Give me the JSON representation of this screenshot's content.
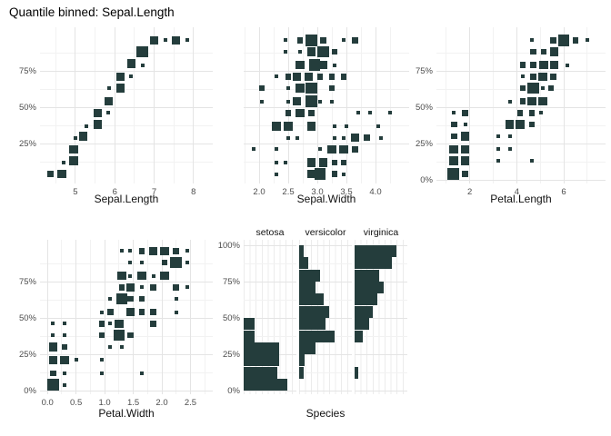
{
  "title": "Quantile binned: Sepal.Length",
  "colors": {
    "tile": "#243d3c",
    "grid_major": "#e4e4e4",
    "grid_minor": "#f2f2f2",
    "tick_text": "#4d4d4d",
    "label_text": "#111111",
    "background": "#ffffff"
  },
  "chart_data": [
    {
      "type": "scatter",
      "id": "p1",
      "xlabel": "Sepal.Length",
      "x_ticks": [
        5,
        6,
        7,
        8
      ],
      "x_tick_labels": [
        "5",
        "6",
        "7",
        "8"
      ],
      "x_minor": [
        4.5,
        5.5,
        6.5,
        7.5
      ],
      "xlim": [
        4.1,
        8.49
      ],
      "y_ticks": [
        25,
        50,
        75
      ],
      "y_tick_labels": [
        "25%",
        "50%",
        "75%"
      ],
      "y_minor": [
        12.5,
        37.5,
        62.5,
        87.5
      ],
      "ylim": [
        -2.5,
        105
      ],
      "note": "square size = count, size class 1-4",
      "points": [
        [
          4.37,
          4,
          2
        ],
        [
          4.65,
          4,
          3
        ],
        [
          4.7,
          12,
          1
        ],
        [
          4.95,
          13,
          3
        ],
        [
          4.95,
          21,
          3
        ],
        [
          5.0,
          29,
          1
        ],
        [
          5.2,
          30,
          3
        ],
        [
          5.27,
          37,
          1
        ],
        [
          5.57,
          38,
          3
        ],
        [
          5.57,
          46,
          3
        ],
        [
          5.84,
          46,
          1
        ],
        [
          5.85,
          54,
          3
        ],
        [
          5.85,
          63,
          1
        ],
        [
          6.15,
          63,
          3
        ],
        [
          6.15,
          71,
          3
        ],
        [
          6.42,
          71,
          1
        ],
        [
          6.42,
          80,
          3
        ],
        [
          6.7,
          79,
          1
        ],
        [
          6.7,
          88,
          4
        ],
        [
          7.0,
          96,
          3
        ],
        [
          7.28,
          96,
          1
        ],
        [
          7.55,
          96,
          3
        ],
        [
          7.84,
          96,
          1
        ]
      ]
    },
    {
      "type": "scatter",
      "id": "p2",
      "xlabel": "Sepal.Width",
      "x_ticks": [
        2.0,
        2.5,
        3.0,
        3.5,
        4.0
      ],
      "x_tick_labels": [
        "2.0",
        "2.5",
        "3.0",
        "3.5",
        "4.0"
      ],
      "x_minor": [
        1.75,
        2.25,
        2.75,
        3.25,
        3.75,
        4.25
      ],
      "xlim": [
        1.734,
        4.578
      ],
      "y_ticks": [
        25,
        50,
        75
      ],
      "y_tick_labels": [],
      "y_minor": [
        12.5,
        37.5,
        62.5,
        87.5
      ],
      "ylim": [
        -2.5,
        105
      ],
      "points": [
        [
          2.45,
          96,
          1
        ],
        [
          2.7,
          96,
          2
        ],
        [
          2.9,
          96,
          4
        ],
        [
          3.1,
          96,
          2
        ],
        [
          3.45,
          96,
          1
        ],
        [
          3.65,
          96,
          2
        ],
        [
          2.45,
          88,
          1
        ],
        [
          2.7,
          88,
          1
        ],
        [
          2.9,
          88,
          3
        ],
        [
          3.1,
          88,
          4
        ],
        [
          3.3,
          88,
          2
        ],
        [
          2.7,
          79,
          3
        ],
        [
          2.95,
          79,
          4
        ],
        [
          3.1,
          79,
          3
        ],
        [
          3.3,
          79,
          1
        ],
        [
          2.3,
          71,
          1
        ],
        [
          2.5,
          71,
          2
        ],
        [
          2.65,
          71,
          3
        ],
        [
          2.85,
          71,
          3
        ],
        [
          3.05,
          71,
          2
        ],
        [
          3.25,
          71,
          2
        ],
        [
          3.45,
          71,
          2
        ],
        [
          2.05,
          63,
          2
        ],
        [
          2.5,
          63,
          1
        ],
        [
          2.7,
          63,
          3
        ],
        [
          2.9,
          63,
          4
        ],
        [
          3.25,
          63,
          2
        ],
        [
          2.05,
          54,
          1
        ],
        [
          2.5,
          54,
          1
        ],
        [
          2.65,
          54,
          3
        ],
        [
          2.9,
          54,
          4
        ],
        [
          3.05,
          54,
          1
        ],
        [
          3.25,
          54,
          1
        ],
        [
          2.5,
          46,
          2
        ],
        [
          2.7,
          46,
          3
        ],
        [
          2.9,
          46,
          2
        ],
        [
          3.7,
          46,
          1
        ],
        [
          3.9,
          46,
          1
        ],
        [
          4.25,
          46,
          1
        ],
        [
          2.3,
          37,
          3
        ],
        [
          2.5,
          37,
          3
        ],
        [
          2.9,
          37,
          3
        ],
        [
          3.3,
          37,
          1
        ],
        [
          3.5,
          37,
          1
        ],
        [
          4.05,
          37,
          1
        ],
        [
          2.5,
          29,
          1
        ],
        [
          2.65,
          29,
          1
        ],
        [
          3.3,
          29,
          1
        ],
        [
          3.45,
          29,
          1
        ],
        [
          3.65,
          29,
          3
        ],
        [
          3.85,
          29,
          2
        ],
        [
          4.1,
          29,
          1
        ],
        [
          1.9,
          21,
          1
        ],
        [
          2.3,
          21,
          1
        ],
        [
          3.05,
          21,
          1
        ],
        [
          3.25,
          21,
          3
        ],
        [
          3.45,
          21,
          3
        ],
        [
          3.65,
          21,
          2
        ],
        [
          2.3,
          12,
          1
        ],
        [
          2.45,
          12,
          1
        ],
        [
          2.9,
          12,
          3
        ],
        [
          3.1,
          12,
          3
        ],
        [
          3.3,
          12,
          2
        ],
        [
          3.45,
          12,
          2
        ],
        [
          2.3,
          4,
          1
        ],
        [
          2.9,
          4,
          3
        ],
        [
          3.05,
          4,
          4
        ],
        [
          3.3,
          4,
          2
        ],
        [
          3.45,
          4,
          1
        ]
      ]
    },
    {
      "type": "scatter",
      "id": "p3",
      "xlabel": "Petal.Length",
      "x_ticks": [
        2,
        4,
        6
      ],
      "x_tick_labels": [
        "2",
        "4",
        "6"
      ],
      "x_minor": [
        1,
        3,
        5,
        7
      ],
      "xlim": [
        0.58,
        7.78
      ],
      "y_ticks": [
        0,
        25,
        50,
        75
      ],
      "y_tick_labels": [
        "0%",
        "25%",
        "50%",
        "75%"
      ],
      "y_minor": [
        12.5,
        37.5,
        62.5,
        87.5
      ],
      "ylim": [
        -2.5,
        105
      ],
      "points": [
        [
          4.65,
          96,
          1
        ],
        [
          5.55,
          96,
          2
        ],
        [
          6.0,
          96,
          4
        ],
        [
          6.5,
          96,
          2
        ],
        [
          7.0,
          96,
          1
        ],
        [
          4.7,
          88,
          2
        ],
        [
          5.15,
          88,
          2
        ],
        [
          5.6,
          88,
          3
        ],
        [
          4.25,
          79,
          2
        ],
        [
          4.7,
          79,
          2
        ],
        [
          5.15,
          79,
          3
        ],
        [
          5.6,
          79,
          3
        ],
        [
          6.15,
          79,
          1
        ],
        [
          4.25,
          71,
          1
        ],
        [
          4.7,
          71,
          2
        ],
        [
          5.1,
          71,
          3
        ],
        [
          5.55,
          71,
          2
        ],
        [
          4.25,
          63,
          2
        ],
        [
          4.7,
          63,
          4
        ],
        [
          5.1,
          63,
          1
        ],
        [
          5.45,
          63,
          2
        ],
        [
          3.7,
          54,
          1
        ],
        [
          4.25,
          54,
          2
        ],
        [
          4.65,
          54,
          3
        ],
        [
          5.1,
          54,
          3
        ],
        [
          1.33,
          46,
          1
        ],
        [
          1.8,
          46,
          2
        ],
        [
          4.15,
          46,
          2
        ],
        [
          4.65,
          46,
          2
        ],
        [
          5.05,
          46,
          1
        ],
        [
          1.33,
          38,
          2
        ],
        [
          1.8,
          38,
          1
        ],
        [
          3.7,
          38,
          3
        ],
        [
          4.15,
          38,
          3
        ],
        [
          4.65,
          38,
          2
        ],
        [
          1.33,
          30,
          2
        ],
        [
          1.8,
          30,
          3
        ],
        [
          3.2,
          30,
          1
        ],
        [
          3.7,
          30,
          1
        ],
        [
          1.31,
          21,
          3
        ],
        [
          1.8,
          21,
          3
        ],
        [
          3.2,
          21,
          1
        ],
        [
          3.7,
          21,
          1
        ],
        [
          1.31,
          13,
          3
        ],
        [
          1.8,
          13,
          3
        ],
        [
          3.2,
          13,
          1
        ],
        [
          4.65,
          13,
          1
        ],
        [
          1.3,
          4,
          4
        ],
        [
          1.8,
          4,
          2
        ]
      ]
    },
    {
      "type": "scatter",
      "id": "p4",
      "xlabel": "Petal.Width",
      "x_ticks": [
        0.0,
        0.5,
        1.0,
        1.5,
        2.0,
        2.5
      ],
      "x_tick_labels": [
        "0.0",
        "0.5",
        "1.0",
        "1.5",
        "2.0",
        "2.5"
      ],
      "x_minor": [
        0.25,
        0.75,
        1.25,
        1.75,
        2.25,
        2.75
      ],
      "xlim": [
        -0.13,
        2.89
      ],
      "y_ticks": [
        0,
        25,
        50,
        75
      ],
      "y_tick_labels": [
        "0%",
        "25%",
        "50%",
        "75%"
      ],
      "y_minor": [
        12.5,
        37.5,
        62.5,
        87.5
      ],
      "ylim": [
        -2.5,
        103.75
      ],
      "points": [
        [
          1.3,
          96,
          1
        ],
        [
          1.45,
          96,
          1
        ],
        [
          1.65,
          96,
          2
        ],
        [
          1.85,
          96,
          3
        ],
        [
          2.05,
          96,
          3
        ],
        [
          2.25,
          96,
          2
        ],
        [
          2.45,
          96,
          1
        ],
        [
          1.45,
          88,
          1
        ],
        [
          1.65,
          88,
          1
        ],
        [
          2.05,
          88,
          2
        ],
        [
          2.25,
          88,
          4
        ],
        [
          2.45,
          88,
          1
        ],
        [
          1.3,
          79,
          3
        ],
        [
          1.45,
          79,
          1
        ],
        [
          1.65,
          79,
          3
        ],
        [
          1.85,
          79,
          1
        ],
        [
          2.05,
          79,
          3
        ],
        [
          1.3,
          71,
          2
        ],
        [
          1.45,
          71,
          3
        ],
        [
          1.65,
          71,
          1
        ],
        [
          1.85,
          71,
          2
        ],
        [
          2.25,
          71,
          2
        ],
        [
          2.45,
          71,
          1
        ],
        [
          1.1,
          63,
          1
        ],
        [
          1.3,
          63,
          4
        ],
        [
          1.45,
          63,
          2
        ],
        [
          1.65,
          63,
          2
        ],
        [
          2.25,
          63,
          1
        ],
        [
          0.95,
          54,
          1
        ],
        [
          1.1,
          54,
          2
        ],
        [
          1.45,
          54,
          3
        ],
        [
          1.65,
          54,
          2
        ],
        [
          1.85,
          54,
          2
        ],
        [
          2.25,
          54,
          1
        ],
        [
          0.1,
          46,
          1
        ],
        [
          0.3,
          46,
          1
        ],
        [
          0.95,
          46,
          2
        ],
        [
          1.1,
          46,
          1
        ],
        [
          1.25,
          46,
          3
        ],
        [
          1.85,
          46,
          2
        ],
        [
          0.1,
          38,
          1
        ],
        [
          0.3,
          38,
          1
        ],
        [
          0.95,
          38,
          2
        ],
        [
          1.25,
          38,
          4
        ],
        [
          1.45,
          38,
          2
        ],
        [
          0.1,
          30,
          3
        ],
        [
          0.3,
          30,
          2
        ],
        [
          1.1,
          30,
          1
        ],
        [
          1.3,
          30,
          1
        ],
        [
          0.1,
          21,
          3
        ],
        [
          0.3,
          21,
          3
        ],
        [
          0.5,
          21,
          1
        ],
        [
          0.95,
          21,
          1
        ],
        [
          0.1,
          12,
          2
        ],
        [
          0.3,
          12,
          1
        ],
        [
          0.95,
          12,
          1
        ],
        [
          1.65,
          12,
          1
        ],
        [
          0.1,
          4,
          4
        ],
        [
          0.3,
          4,
          1
        ]
      ]
    },
    {
      "type": "bar-facets",
      "id": "p5",
      "xlabel": "Species",
      "y_ticks": [
        0,
        25,
        50,
        75,
        100
      ],
      "y_tick_labels": [
        "0%",
        "25%",
        "50%",
        "75%",
        "100%"
      ],
      "y_minor": [
        12.5,
        37.5,
        62.5,
        87.5
      ],
      "ylim": [
        -2.5,
        103.75
      ],
      "note": "horizontal bar length = relative count of observations in each quantile bin",
      "facets": [
        {
          "label": "setosa",
          "bars": [
            {
              "pct": 46,
              "w": 0.2
            },
            {
              "pct": 37,
              "w": 0.2
            },
            {
              "pct": 29,
              "w": 0.68
            },
            {
              "pct": 21,
              "w": 0.68
            },
            {
              "pct": 12,
              "w": 0.63
            },
            {
              "pct": 4,
              "w": 0.82
            }
          ]
        },
        {
          "label": "versicolor",
          "bars": [
            {
              "pct": 96,
              "w": 0.08
            },
            {
              "pct": 88,
              "w": 0.17
            },
            {
              "pct": 79,
              "w": 0.4
            },
            {
              "pct": 71,
              "w": 0.31
            },
            {
              "pct": 63,
              "w": 0.47
            },
            {
              "pct": 54,
              "w": 0.57
            },
            {
              "pct": 46,
              "w": 0.5
            },
            {
              "pct": 37,
              "w": 0.67
            },
            {
              "pct": 29,
              "w": 0.31
            },
            {
              "pct": 21,
              "w": 0.11
            },
            {
              "pct": 12,
              "w": 0.08
            }
          ]
        },
        {
          "label": "virginica",
          "bars": [
            {
              "pct": 96,
              "w": 0.8
            },
            {
              "pct": 88,
              "w": 0.71
            },
            {
              "pct": 79,
              "w": 0.47
            },
            {
              "pct": 71,
              "w": 0.56
            },
            {
              "pct": 63,
              "w": 0.43
            },
            {
              "pct": 54,
              "w": 0.34
            },
            {
              "pct": 46,
              "w": 0.27
            },
            {
              "pct": 37,
              "w": 0.16
            },
            {
              "pct": 12,
              "w": 0.07
            }
          ]
        }
      ]
    }
  ]
}
